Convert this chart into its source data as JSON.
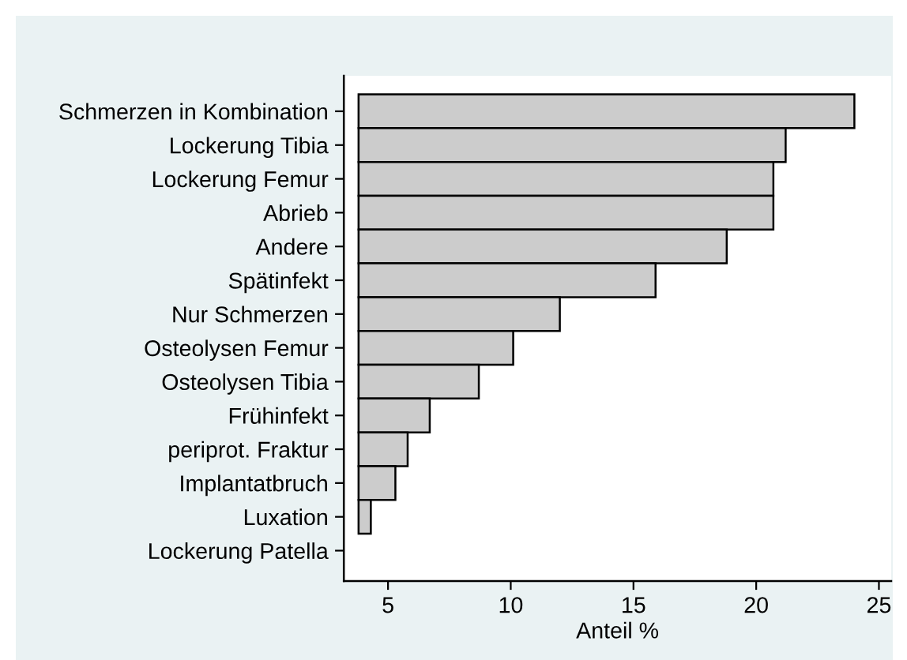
{
  "chart_data": {
    "type": "bar",
    "orientation": "horizontal",
    "xlabel": "Anteil %",
    "categories": [
      "Schmerzen in Kombination",
      "Lockerung Tibia",
      "Lockerung Femur",
      "Abrieb",
      "Andere",
      "Spätinfekt",
      "Nur Schmerzen",
      "Osteolysen Femur",
      "Osteolysen Tibia",
      "Frühinfekt",
      "periprot. Fraktur",
      "Implantatbruch",
      "Luxation",
      "Lockerung Patella"
    ],
    "base": [
      3.8,
      3.8,
      3.8,
      3.8,
      3.8,
      3.8,
      3.8,
      3.8,
      3.8,
      3.8,
      3.8,
      3.8,
      3.8,
      null
    ],
    "values": [
      20.2,
      17.4,
      16.9,
      16.9,
      15.0,
      12.1,
      8.2,
      6.3,
      4.9,
      2.9,
      2.0,
      1.5,
      0.5,
      null
    ],
    "color": "#cccccc",
    "xlim": [
      3.2,
      25.5
    ],
    "xticks": [
      5,
      10,
      15,
      20,
      25
    ],
    "grid": false
  }
}
